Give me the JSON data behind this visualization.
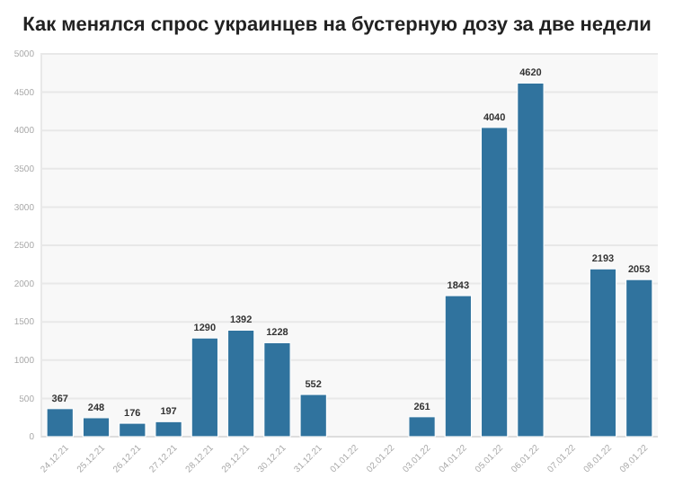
{
  "chart_data": {
    "type": "bar",
    "title": "Как менялся спрос украинцев на бустерную дозу за две недели",
    "categories": [
      "24.12.21",
      "25.12.21",
      "26.12.21",
      "27.12.21",
      "28.12.21",
      "29.12.21",
      "30.12.21",
      "31.12.21",
      "01.01.22",
      "02.01.22",
      "03.01.22",
      "04.01.22",
      "05.01.22",
      "06.01.22",
      "07.01.22",
      "08.01.22",
      "09.01.22"
    ],
    "values": [
      367,
      248,
      176,
      197,
      1290,
      1392,
      1228,
      552,
      null,
      null,
      261,
      1843,
      4040,
      4620,
      null,
      2193,
      2053
    ],
    "color": "#30739e",
    "ylim": [
      0,
      5000
    ],
    "yticks": [
      0,
      500,
      1000,
      1500,
      2000,
      2500,
      3000,
      3500,
      4000,
      4500,
      5000
    ],
    "grid": "y",
    "data_labels": true
  }
}
